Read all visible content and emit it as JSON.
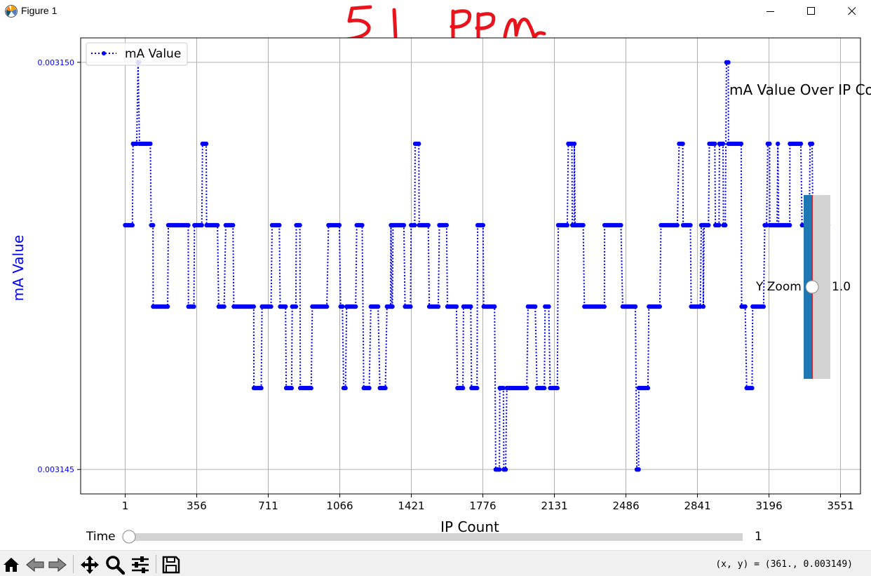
{
  "window": {
    "title": "Figure 1",
    "annotation": "51 PPM"
  },
  "chart_data": {
    "type": "line",
    "title": "mA Value Over IP Co",
    "xlabel": "IP Count",
    "ylabel": "mA Value",
    "legend": {
      "label": "mA Value",
      "placement": "top-left"
    },
    "xlim": [
      -220,
      3650
    ],
    "ylim": [
      0.0031447,
      0.0031503
    ],
    "xticks": [
      1,
      356,
      711,
      1066,
      1421,
      1776,
      2131,
      2486,
      2841,
      3196,
      3551
    ],
    "yticks": [
      0.003145,
      0.00315
    ],
    "ytick_labels": [
      "0.003145",
      "0.003150"
    ],
    "levels": [
      0.003145,
      0.003146,
      0.003147,
      0.003148,
      0.003149,
      0.00315
    ],
    "grid": true,
    "line_style": "dotted",
    "marker": "circle",
    "color": "#0000ff",
    "segments": [
      [
        1,
        3
      ],
      [
        40,
        4
      ],
      [
        65,
        5
      ],
      [
        72,
        4
      ],
      [
        130,
        3
      ],
      [
        140,
        2
      ],
      [
        215,
        3
      ],
      [
        315,
        2
      ],
      [
        345,
        3
      ],
      [
        385,
        4
      ],
      [
        405,
        3
      ],
      [
        465,
        2
      ],
      [
        500,
        3
      ],
      [
        540,
        2
      ],
      [
        640,
        1
      ],
      [
        680,
        2
      ],
      [
        730,
        3
      ],
      [
        770,
        2
      ],
      [
        800,
        1
      ],
      [
        830,
        2
      ],
      [
        850,
        3
      ],
      [
        870,
        1
      ],
      [
        930,
        2
      ],
      [
        1010,
        3
      ],
      [
        1070,
        2
      ],
      [
        1085,
        1
      ],
      [
        1100,
        2
      ],
      [
        1150,
        3
      ],
      [
        1185,
        1
      ],
      [
        1220,
        2
      ],
      [
        1265,
        1
      ],
      [
        1300,
        2
      ],
      [
        1330,
        3
      ],
      [
        1390,
        2
      ],
      [
        1420,
        3
      ],
      [
        1440,
        4
      ],
      [
        1460,
        3
      ],
      [
        1510,
        2
      ],
      [
        1560,
        3
      ],
      [
        1600,
        2
      ],
      [
        1650,
        1
      ],
      [
        1680,
        2
      ],
      [
        1720,
        1
      ],
      [
        1750,
        3
      ],
      [
        1780,
        2
      ],
      [
        1840,
        0
      ],
      [
        1860,
        1
      ],
      [
        1880,
        0
      ],
      [
        1895,
        1
      ],
      [
        2000,
        2
      ],
      [
        2045,
        1
      ],
      [
        2085,
        2
      ],
      [
        2110,
        1
      ],
      [
        2150,
        3
      ],
      [
        2200,
        4
      ],
      [
        2220,
        3
      ],
      [
        2280,
        2
      ],
      [
        2380,
        3
      ],
      [
        2470,
        2
      ],
      [
        2540,
        0
      ],
      [
        2550,
        1
      ],
      [
        2600,
        2
      ],
      [
        2660,
        3
      ],
      [
        2750,
        4
      ],
      [
        2770,
        3
      ],
      [
        2810,
        2
      ],
      [
        2860,
        3
      ],
      [
        2900,
        4
      ],
      [
        2930,
        3
      ],
      [
        2950,
        4
      ],
      [
        2970,
        3
      ],
      [
        2985,
        5
      ],
      [
        2995,
        4
      ],
      [
        3060,
        2
      ],
      [
        3085,
        1
      ],
      [
        3115,
        2
      ],
      [
        3175,
        3
      ],
      [
        3190,
        4
      ],
      [
        3200,
        3
      ],
      [
        3300,
        4
      ],
      [
        3360,
        3
      ],
      [
        3400,
        4
      ],
      [
        3415,
        3
      ],
      [
        3490,
        3
      ]
    ],
    "spikes": [
      {
        "x": 65,
        "level": 5
      },
      {
        "x": 1320,
        "level": 3
      },
      {
        "x": 2230,
        "level": 4
      },
      {
        "x": 3240,
        "level": 4
      },
      {
        "x": 3410,
        "level": 4
      },
      {
        "x": 2870,
        "level": 2
      }
    ]
  },
  "sliders": {
    "time": {
      "label": "Time",
      "value": "1",
      "value_fraction": 0
    },
    "yzoom": {
      "label": "Y Zoom",
      "value": "1.0",
      "value_fraction": 0.5
    }
  },
  "toolbar": {
    "icons": [
      "home-icon",
      "back-icon",
      "forward-icon",
      "pan-icon",
      "zoom-icon",
      "configure-icon",
      "save-icon"
    ],
    "coord_readout": "(x, y) = (361., 0.003149)"
  }
}
